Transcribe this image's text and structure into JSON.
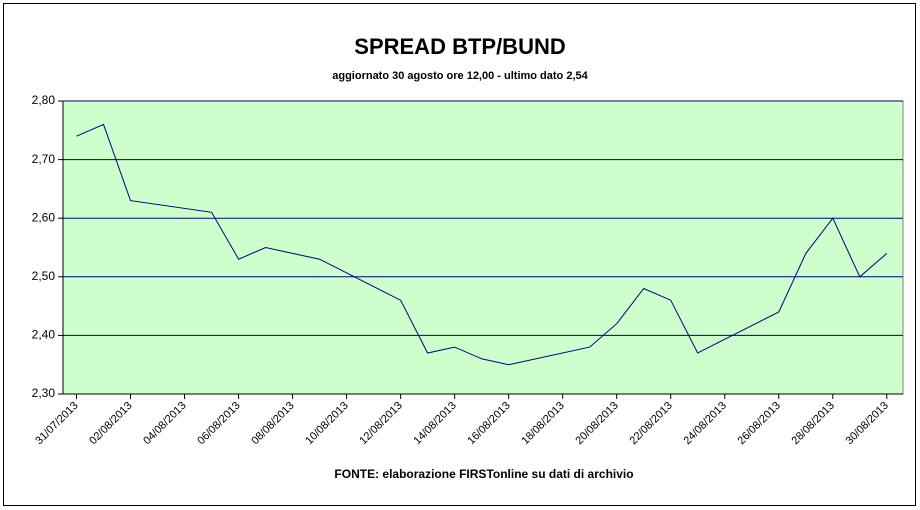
{
  "chart_data": {
    "type": "line",
    "title": "SPREAD BTP/BUND",
    "subtitle": "aggiornato 30 agosto ore 12,00 - ultimo dato 2,54",
    "source": "FONTE:  elaborazione FIRSTonline su dati di archivio",
    "x": [
      "31/07/2013",
      "01/08/2013",
      "02/08/2013",
      "05/08/2013",
      "06/08/2013",
      "07/08/2013",
      "08/08/2013",
      "09/08/2013",
      "12/08/2013",
      "13/08/2013",
      "14/08/2013",
      "15/08/2013",
      "16/08/2013",
      "19/08/2013",
      "20/08/2013",
      "21/08/2013",
      "22/08/2013",
      "23/08/2013",
      "26/08/2013",
      "27/08/2013",
      "28/08/2013",
      "29/08/2013",
      "30/08/2013"
    ],
    "values": [
      2.74,
      2.76,
      2.63,
      2.61,
      2.53,
      2.55,
      2.54,
      2.53,
      2.46,
      2.37,
      2.38,
      2.36,
      2.35,
      2.38,
      2.42,
      2.48,
      2.46,
      2.37,
      2.44,
      2.54,
      2.6,
      2.5,
      2.54
    ],
    "color": "#000080",
    "xlim": [
      "31/07/2013",
      "30/08/2013"
    ],
    "xticks": [
      "31/07/2013",
      "02/08/2013",
      "04/08/2013",
      "06/08/2013",
      "08/08/2013",
      "10/08/2013",
      "12/08/2013",
      "14/08/2013",
      "16/08/2013",
      "18/08/2013",
      "20/08/2013",
      "22/08/2013",
      "24/08/2013",
      "26/08/2013",
      "28/08/2013",
      "30/08/2013"
    ],
    "ylim": [
      2.3,
      2.8
    ],
    "yticks": [
      {
        "value": 2.3,
        "label": "2,30"
      },
      {
        "value": 2.4,
        "label": "2,40"
      },
      {
        "value": 2.5,
        "label": "2,50"
      },
      {
        "value": 2.6,
        "label": "2,60"
      },
      {
        "value": 2.7,
        "label": "2,70"
      },
      {
        "value": 2.8,
        "label": "2,80"
      }
    ],
    "grid": true
  }
}
